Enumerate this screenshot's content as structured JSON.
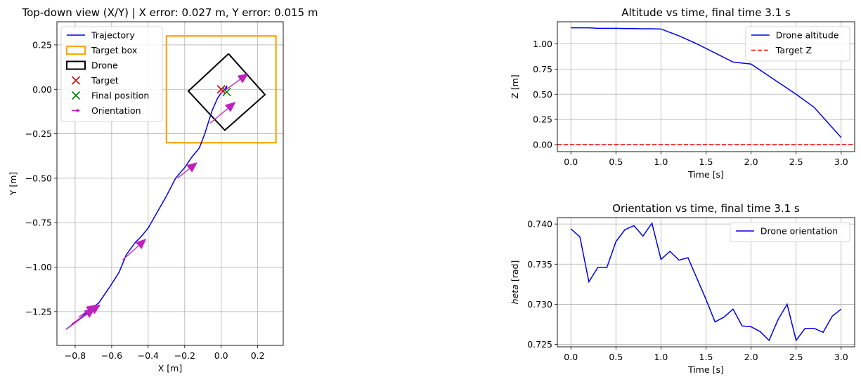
{
  "chart_data": [
    {
      "type": "line",
      "title": "Top-down view (X/Y) | X error: 0.027 m, Y error: 0.015 m",
      "xlabel": "X [m]",
      "ylabel": "Y [m]",
      "xlim": [
        -0.9,
        0.34
      ],
      "ylim": [
        -1.44,
        0.38
      ],
      "xticks": [
        -0.8,
        -0.6,
        -0.4,
        -0.2,
        0.0,
        0.2
      ],
      "xtick_labels": [
        "−0.8",
        "−0.6",
        "−0.4",
        "−0.2",
        "0.0",
        "0.2"
      ],
      "yticks": [
        0.25,
        0.0,
        -0.25,
        -0.5,
        -0.75,
        -1.0,
        -1.25
      ],
      "ytick_labels": [
        "0.25",
        "0.00",
        "−0.25",
        "−0.50",
        "−0.75",
        "−1.00",
        "−1.25"
      ],
      "grid": true,
      "legend_placement": "top-left",
      "legend": [
        {
          "label": "Trajectory",
          "kind": "line",
          "color": "#0000ee"
        },
        {
          "label": "Target box",
          "kind": "box",
          "color": "#ffa500"
        },
        {
          "label": "Drone",
          "kind": "box",
          "color": "#000000"
        },
        {
          "label": "Target",
          "kind": "x",
          "color": "#dd0000"
        },
        {
          "label": "Final position",
          "kind": "x",
          "color": "#008000"
        },
        {
          "label": "Orientation",
          "kind": "arrow",
          "color": "#c020c0"
        }
      ],
      "trajectory": {
        "x": [
          -0.85,
          -0.8,
          -0.73,
          -0.67,
          -0.61,
          -0.56,
          -0.52,
          -0.47,
          -0.44,
          -0.4,
          -0.35,
          -0.3,
          -0.25,
          -0.2,
          -0.16,
          -0.12,
          -0.09,
          -0.05,
          -0.02,
          0.0,
          0.02,
          0.03,
          0.03
        ],
        "y": [
          -1.35,
          -1.31,
          -1.25,
          -1.2,
          -1.11,
          -1.03,
          -0.93,
          -0.86,
          -0.83,
          -0.78,
          -0.69,
          -0.6,
          -0.5,
          -0.44,
          -0.38,
          -0.33,
          -0.25,
          -0.12,
          -0.05,
          -0.02,
          0.0,
          0.02,
          0.0
        ]
      },
      "target_box": {
        "x": [
          -0.3,
          0.3
        ],
        "y": [
          -0.3,
          0.3
        ]
      },
      "drone_outline": {
        "x": [
          0.04,
          0.24,
          0.02,
          -0.18,
          0.04
        ],
        "y": [
          0.2,
          -0.03,
          -0.23,
          -0.01,
          0.2
        ]
      },
      "target": {
        "x": 0.0,
        "y": 0.0
      },
      "final_position": {
        "x": 0.03,
        "y": -0.015
      },
      "orientation_arrows": [
        {
          "x": -0.85,
          "y": -1.35,
          "dx": 0.16,
          "dy": 0.12
        },
        {
          "x": -0.82,
          "y": -1.32,
          "dx": 0.16,
          "dy": 0.11
        },
        {
          "x": -0.78,
          "y": -1.28,
          "dx": 0.1,
          "dy": 0.07
        },
        {
          "x": -0.54,
          "y": -0.96,
          "dx": 0.13,
          "dy": 0.12
        },
        {
          "x": -0.24,
          "y": -0.5,
          "dx": 0.11,
          "dy": 0.09
        },
        {
          "x": -0.06,
          "y": -0.19,
          "dx": 0.14,
          "dy": 0.12
        },
        {
          "x": 0.0,
          "y": -0.02,
          "dx": 0.15,
          "dy": 0.11
        }
      ]
    },
    {
      "type": "line",
      "title": "Altitude vs time, final time 3.1 s",
      "xlabel": "Time [s]",
      "ylabel": "Z [m]",
      "xlim": [
        -0.15,
        3.15
      ],
      "ylim": [
        -0.07,
        1.22
      ],
      "xticks": [
        0.0,
        0.5,
        1.0,
        1.5,
        2.0,
        2.5,
        3.0
      ],
      "xtick_labels": [
        "0.0",
        "0.5",
        "1.0",
        "1.5",
        "2.0",
        "2.5",
        "3.0"
      ],
      "yticks": [
        0.0,
        0.25,
        0.5,
        0.75,
        1.0
      ],
      "ytick_labels": [
        "0.00",
        "0.25",
        "0.50",
        "0.75",
        "1.00"
      ],
      "grid": true,
      "legend_placement": "top-right",
      "series": [
        {
          "name": "Drone altitude",
          "color": "#0000ee",
          "style": "solid",
          "x": [
            0.0,
            0.1,
            0.2,
            0.3,
            0.4,
            0.5,
            0.6,
            0.7,
            0.8,
            0.9,
            1.0,
            1.2,
            1.4,
            1.6,
            1.8,
            2.0,
            2.2,
            2.5,
            2.7,
            3.0
          ],
          "y": [
            1.16,
            1.16,
            1.16,
            1.155,
            1.155,
            1.155,
            1.153,
            1.152,
            1.15,
            1.15,
            1.148,
            1.08,
            1.0,
            0.91,
            0.82,
            0.8,
            0.68,
            0.5,
            0.37,
            0.07
          ]
        },
        {
          "name": "Target Z",
          "color": "#ee0000",
          "style": "dashed",
          "x": [
            -0.15,
            3.15
          ],
          "y": [
            0.0,
            0.0
          ]
        }
      ]
    },
    {
      "type": "line",
      "title": "Orientation vs time, final time 3.1 s",
      "xlabel": "Time [s]",
      "ylabel": "$heta$ [rad]",
      "ylabel_display": {
        "italic": "heta",
        "rest": " [rad]"
      },
      "xlim": [
        -0.15,
        3.15
      ],
      "ylim": [
        0.7247,
        0.7408
      ],
      "xticks": [
        0.0,
        0.5,
        1.0,
        1.5,
        2.0,
        2.5,
        3.0
      ],
      "xtick_labels": [
        "0.0",
        "0.5",
        "1.0",
        "1.5",
        "2.0",
        "2.5",
        "3.0"
      ],
      "yticks": [
        0.725,
        0.73,
        0.735,
        0.74
      ],
      "ytick_labels": [
        "0.725",
        "0.730",
        "0.735",
        "0.740"
      ],
      "grid": true,
      "legend_placement": "top-right",
      "series": [
        {
          "name": "Drone orientation",
          "color": "#0000ee",
          "style": "solid",
          "x": [
            0.0,
            0.1,
            0.2,
            0.3,
            0.4,
            0.5,
            0.6,
            0.7,
            0.8,
            0.9,
            1.0,
            1.1,
            1.2,
            1.3,
            1.4,
            1.5,
            1.6,
            1.7,
            1.8,
            1.9,
            2.0,
            2.1,
            2.2,
            2.3,
            2.4,
            2.5,
            2.6,
            2.7,
            2.8,
            2.9,
            3.0
          ],
          "y": [
            0.7394,
            0.7384,
            0.7328,
            0.7346,
            0.7346,
            0.7378,
            0.7393,
            0.7398,
            0.7385,
            0.7401,
            0.7356,
            0.7366,
            0.7355,
            0.7358,
            0.7332,
            0.7306,
            0.7278,
            0.7284,
            0.7294,
            0.7273,
            0.7272,
            0.7266,
            0.7255,
            0.7281,
            0.73,
            0.7255,
            0.727,
            0.727,
            0.7265,
            0.7285,
            0.7294
          ]
        }
      ]
    }
  ]
}
